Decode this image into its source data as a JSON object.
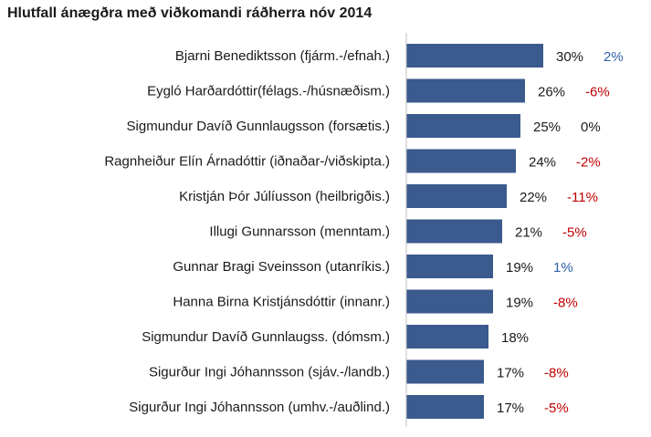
{
  "chart_data": {
    "type": "bar",
    "orientation": "horizontal",
    "title": "Hlutfall ánægðra með viðkomandi ráðherra nóv 2014",
    "xlabel": "",
    "ylabel": "",
    "xlim": [
      0,
      30
    ],
    "grid": false,
    "legend": "none",
    "bar_color": "#3b5a8e",
    "change_colors": {
      "positive": "#2e5fa8",
      "negative": "#c00000",
      "zero": "#1a1a1a"
    },
    "categories": [
      "Bjarni Benediktsson (fjárm.-/efnah.)",
      "Eygló Harðardóttir(félags.-/húsnæðism.)",
      "Sigmundur Davíð Gunnlaugsson (forsætis.)",
      "Ragnheiður Elín Árnadóttir (iðnaðar-/viðskipta.)",
      "Kristján Þór Júlíusson (heilbrigðis.)",
      "Illugi Gunnarsson (menntam.)",
      "Gunnar Bragi Sveinsson (utanríkis.)",
      "Hanna Birna Kristjánsdóttir (innanr.)",
      "Sigmundur Davíð Gunnlaugss. (dómsm.)",
      "Sigurður Ingi Jóhannsson (sjáv.-/landb.)",
      "Sigurður Ingi Jóhannsson (umhv.-/auðlind.)"
    ],
    "values": [
      30,
      26,
      25,
      24,
      22,
      21,
      19,
      19,
      18,
      17,
      17
    ],
    "value_labels": [
      "30%",
      "26%",
      "25%",
      "24%",
      "22%",
      "21%",
      "19%",
      "19%",
      "18%",
      "17%",
      "17%"
    ],
    "change_labels": [
      "2%",
      "-6%",
      "0%",
      "-2%",
      "-11%",
      "-5%",
      "1%",
      "-8%",
      "",
      "-8%",
      "-5%"
    ]
  }
}
